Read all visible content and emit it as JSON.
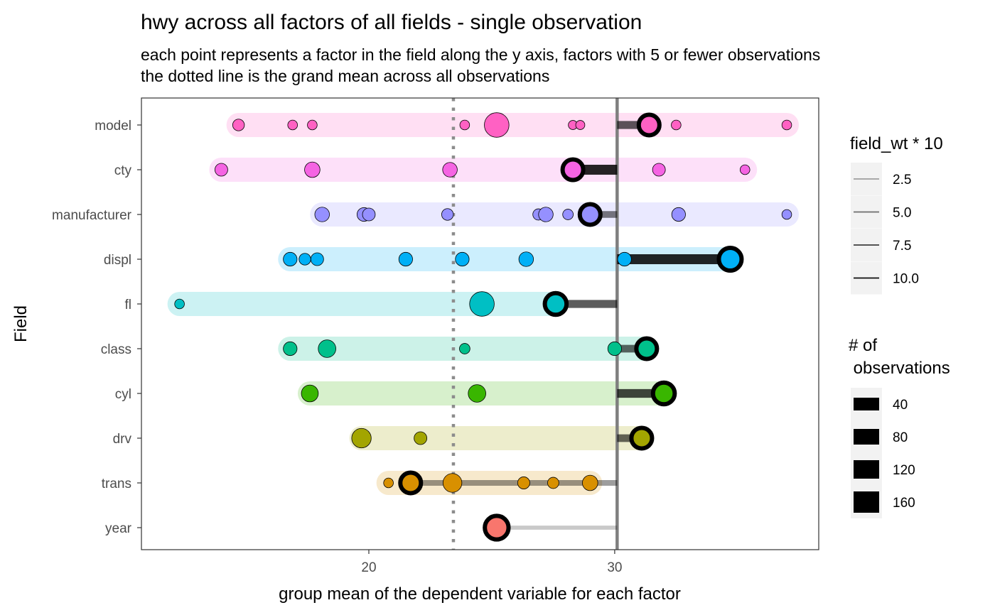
{
  "chart_data": {
    "type": "scatter",
    "title": "hwy across all factors of all fields - single observation",
    "subtitle_line1": "each point represents a factor in the field along the y axis, factors with 5 or fewer observations",
    "subtitle_line2": "the dotted line is the grand mean across all observations",
    "xlabel": "group mean of the dependent variable for each factor",
    "ylabel": "Field",
    "xlim": [
      10.75,
      38.3
    ],
    "x_ticks": [
      {
        "value": 20,
        "label": "20"
      },
      {
        "value": 30,
        "label": "30"
      }
    ],
    "grand_mean": 23.44,
    "observation_value": 30.1,
    "grid": false,
    "categories": [
      "model",
      "cty",
      "manufacturer",
      "displ",
      "fl",
      "class",
      "cyl",
      "drv",
      "trans",
      "year"
    ],
    "fields": [
      {
        "name": "model",
        "color": "#FF61C3",
        "range": [
          14.7,
          37.0
        ],
        "highlight": 31.4,
        "weight": 7.5,
        "highlight_n": 80,
        "points": [
          {
            "x": 14.7,
            "n": 20
          },
          {
            "x": 16.9,
            "n": 12
          },
          {
            "x": 17.7,
            "n": 12
          },
          {
            "x": 23.9,
            "n": 12
          },
          {
            "x": 25.2,
            "n": 120
          },
          {
            "x": 28.3,
            "n": 10
          },
          {
            "x": 28.6,
            "n": 10
          },
          {
            "x": 32.5,
            "n": 12
          },
          {
            "x": 37.0,
            "n": 12
          }
        ]
      },
      {
        "name": "cty",
        "color": "#F564E3",
        "range": [
          14.0,
          35.3
        ],
        "highlight": 28.3,
        "weight": 10,
        "highlight_n": 80,
        "points": [
          {
            "x": 14.0,
            "n": 25
          },
          {
            "x": 17.7,
            "n": 40
          },
          {
            "x": 23.3,
            "n": 35
          },
          {
            "x": 31.8,
            "n": 25
          },
          {
            "x": 35.3,
            "n": 12
          }
        ]
      },
      {
        "name": "manufacturer",
        "color": "#9590FF",
        "range": [
          18.1,
          37.0
        ],
        "highlight": 29.0,
        "weight": 6,
        "highlight_n": 80,
        "points": [
          {
            "x": 18.1,
            "n": 35
          },
          {
            "x": 19.8,
            "n": 30
          },
          {
            "x": 20.0,
            "n": 25
          },
          {
            "x": 23.2,
            "n": 20
          },
          {
            "x": 26.9,
            "n": 18
          },
          {
            "x": 27.2,
            "n": 35
          },
          {
            "x": 28.1,
            "n": 15
          },
          {
            "x": 32.6,
            "n": 30
          },
          {
            "x": 37.0,
            "n": 12
          }
        ]
      },
      {
        "name": "displ",
        "color": "#00B0F6",
        "range": [
          16.8,
          34.7
        ],
        "highlight": 34.7,
        "weight": 10,
        "highlight_n": 100,
        "points": [
          {
            "x": 16.8,
            "n": 30
          },
          {
            "x": 17.4,
            "n": 20
          },
          {
            "x": 17.9,
            "n": 25
          },
          {
            "x": 21.5,
            "n": 30
          },
          {
            "x": 23.8,
            "n": 30
          },
          {
            "x": 26.4,
            "n": 35
          },
          {
            "x": 30.4,
            "n": 30
          }
        ]
      },
      {
        "name": "fl",
        "color": "#00BFC4",
        "range": [
          12.3,
          27.6
        ],
        "highlight": 27.6,
        "weight": 7.5,
        "highlight_n": 90,
        "points": [
          {
            "x": 12.3,
            "n": 12
          },
          {
            "x": 24.6,
            "n": 120
          }
        ]
      },
      {
        "name": "class",
        "color": "#00C08B",
        "range": [
          16.8,
          31.3
        ],
        "highlight": 31.3,
        "weight": 7,
        "highlight_n": 80,
        "points": [
          {
            "x": 16.8,
            "n": 30
          },
          {
            "x": 18.3,
            "n": 55
          },
          {
            "x": 23.9,
            "n": 15
          },
          {
            "x": 30.0,
            "n": 30
          }
        ]
      },
      {
        "name": "cyl",
        "color": "#39B600",
        "range": [
          17.6,
          32.0
        ],
        "highlight": 32.0,
        "weight": 8.5,
        "highlight_n": 90,
        "points": [
          {
            "x": 17.6,
            "n": 50
          },
          {
            "x": 24.4,
            "n": 55
          }
        ]
      },
      {
        "name": "drv",
        "color": "#A3A500",
        "range": [
          19.7,
          31.1
        ],
        "highlight": 31.1,
        "weight": 7,
        "highlight_n": 80,
        "points": [
          {
            "x": 19.7,
            "n": 70
          },
          {
            "x": 22.1,
            "n": 25
          }
        ]
      },
      {
        "name": "trans",
        "color": "#D89000",
        "range": [
          20.8,
          29.0
        ],
        "highlight": 21.7,
        "weight": 4.5,
        "highlight_n": 80,
        "points": [
          {
            "x": 20.8,
            "n": 12
          },
          {
            "x": 23.4,
            "n": 65
          },
          {
            "x": 26.3,
            "n": 22
          },
          {
            "x": 27.5,
            "n": 18
          },
          {
            "x": 29.0,
            "n": 40
          }
        ]
      },
      {
        "name": "year",
        "color": "#F8766D",
        "range": [
          25.2,
          25.2
        ],
        "highlight": 25.2,
        "weight": 2.5,
        "highlight_n": 110,
        "points": []
      }
    ],
    "legend_weight": {
      "title": "field_wt * 10",
      "entries": [
        "2.5",
        "5.0",
        "7.5",
        "10.0"
      ]
    },
    "legend_size": {
      "title_line1": "# of",
      "title_line2": " observations",
      "entries": [
        "40",
        "80",
        "120",
        "160"
      ]
    }
  }
}
